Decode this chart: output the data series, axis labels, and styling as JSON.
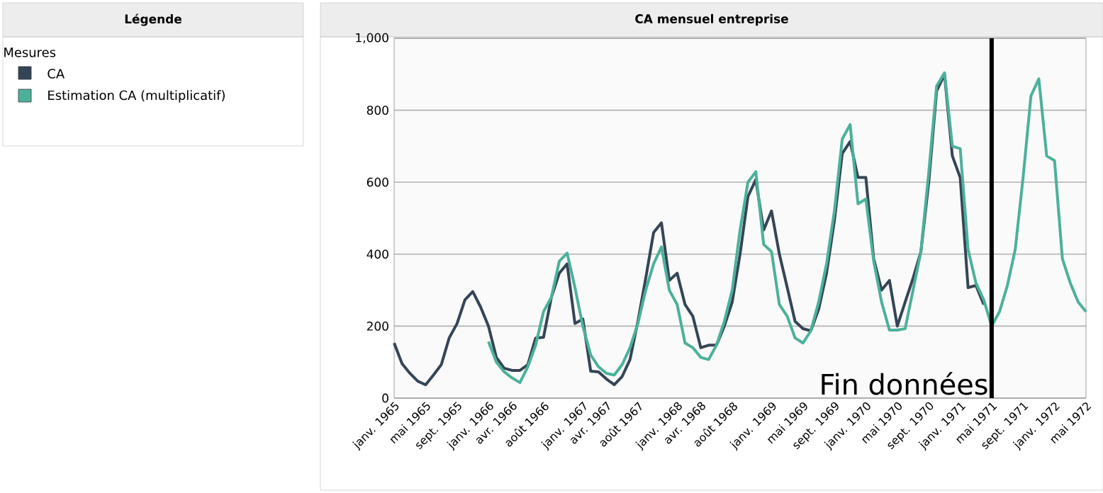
{
  "chart_data": {
    "type": "line",
    "title": "CA mensuel entreprise",
    "legend_title": "Mesures",
    "annotations": [
      "Légende"
    ],
    "x": [
      "1965-01",
      "1965-02",
      "1965-03",
      "1965-04",
      "1965-05",
      "1965-06",
      "1965-07",
      "1965-08",
      "1965-09",
      "1965-10",
      "1965-11",
      "1965-12",
      "1966-01",
      "1966-02",
      "1966-03",
      "1966-04",
      "1966-05",
      "1966-06",
      "1966-07",
      "1966-08",
      "1966-09",
      "1966-10",
      "1966-11",
      "1966-12",
      "1967-01",
      "1967-02",
      "1967-03",
      "1967-04",
      "1967-05",
      "1967-06",
      "1967-07",
      "1967-08",
      "1967-09",
      "1967-10",
      "1967-11",
      "1967-12",
      "1968-01",
      "1968-02",
      "1968-03",
      "1968-04",
      "1968-05",
      "1968-06",
      "1968-07",
      "1968-08",
      "1968-09",
      "1968-10",
      "1968-11",
      "1968-12",
      "1969-01",
      "1969-02",
      "1969-03",
      "1969-04",
      "1969-05",
      "1969-06",
      "1969-07",
      "1969-08",
      "1969-09",
      "1969-10",
      "1969-11",
      "1969-12",
      "1970-01",
      "1970-02",
      "1970-03",
      "1970-04",
      "1970-05",
      "1970-06",
      "1970-07",
      "1970-08",
      "1970-09",
      "1970-10",
      "1970-11",
      "1970-12",
      "1971-01",
      "1971-02",
      "1971-03",
      "1971-04",
      "1971-05",
      "1971-06",
      "1971-07",
      "1971-08",
      "1971-09",
      "1971-10",
      "1971-11",
      "1971-12",
      "1972-01",
      "1972-02",
      "1972-03",
      "1972-04",
      "1972-05"
    ],
    "series": [
      {
        "name": "CA",
        "color": "#344556",
        "values": [
          153,
          96,
          69,
          47,
          37,
          64,
          93,
          167,
          207,
          273,
          296,
          253,
          200,
          113,
          83,
          77,
          77,
          93,
          167,
          169,
          280,
          347,
          373,
          207,
          220,
          75,
          73,
          53,
          37,
          60,
          107,
          213,
          333,
          460,
          487,
          327,
          347,
          260,
          227,
          140,
          147,
          147,
          200,
          267,
          400,
          560,
          607,
          467,
          520,
          400,
          307,
          213,
          193,
          187,
          247,
          347,
          493,
          680,
          713,
          613,
          613,
          387,
          300,
          327,
          200,
          267,
          333,
          407,
          600,
          853,
          900,
          673,
          613,
          307,
          313,
          260,
          null,
          null,
          null,
          null,
          null,
          null,
          null,
          null,
          null,
          null,
          null,
          null,
          null
        ]
      },
      {
        "name": "Estimation CA (multiplicatif)",
        "color": "#4cb19a",
        "values": [
          null,
          null,
          null,
          null,
          null,
          null,
          null,
          null,
          null,
          null,
          null,
          null,
          157,
          100,
          73,
          56,
          43,
          87,
          147,
          240,
          280,
          380,
          403,
          307,
          200,
          120,
          87,
          69,
          64,
          93,
          140,
          207,
          300,
          373,
          420,
          300,
          260,
          153,
          140,
          113,
          107,
          147,
          213,
          300,
          467,
          600,
          629,
          427,
          407,
          260,
          227,
          167,
          153,
          187,
          267,
          373,
          520,
          720,
          760,
          540,
          553,
          380,
          267,
          189,
          189,
          193,
          300,
          407,
          627,
          867,
          904,
          700,
          693,
          413,
          320,
          273,
          200,
          240,
          313,
          413,
          613,
          840,
          887,
          673,
          660,
          387,
          320,
          267,
          240
        ]
      }
    ],
    "xlim": [
      "1965-01",
      "1972-05"
    ],
    "xticks": [
      {
        "value": "1965-01",
        "label": "janv. 1965"
      },
      {
        "value": "1965-05",
        "label": "mai 1965"
      },
      {
        "value": "1965-09",
        "label": "sept. 1965"
      },
      {
        "value": "1966-01",
        "label": "janv. 1966"
      },
      {
        "value": "1966-04",
        "label": "avr. 1966"
      },
      {
        "value": "1966-08",
        "label": "août 1966"
      },
      {
        "value": "1967-01",
        "label": "janv. 1967"
      },
      {
        "value": "1967-04",
        "label": "avr. 1967"
      },
      {
        "value": "1967-08",
        "label": "août 1967"
      },
      {
        "value": "1968-01",
        "label": "janv. 1968"
      },
      {
        "value": "1968-04",
        "label": "avr. 1968"
      },
      {
        "value": "1968-08",
        "label": "août 1968"
      },
      {
        "value": "1969-01",
        "label": "janv. 1969"
      },
      {
        "value": "1969-05",
        "label": "mai 1969"
      },
      {
        "value": "1969-09",
        "label": "sept. 1969"
      },
      {
        "value": "1970-01",
        "label": "janv. 1970"
      },
      {
        "value": "1970-05",
        "label": "mai 1970"
      },
      {
        "value": "1970-09",
        "label": "sept. 1970"
      },
      {
        "value": "1971-01",
        "label": "janv. 1971"
      },
      {
        "value": "1971-05",
        "label": "mai 1971"
      },
      {
        "value": "1971-09",
        "label": "sept. 1971"
      },
      {
        "value": "1972-01",
        "label": "janv. 1972"
      },
      {
        "value": "1972-05",
        "label": "mai 1972"
      }
    ],
    "ylim": [
      0,
      1000
    ],
    "yticks": [
      0,
      200,
      400,
      600,
      800,
      {
        "value": 1000,
        "label": "1,000"
      }
    ],
    "grid": "y",
    "legend": "left",
    "marker": "none",
    "line_style": "solid",
    "ref_lines": [
      {
        "axis": "x",
        "value": "1971-05",
        "label": "Fin données",
        "color": "#000000"
      }
    ]
  }
}
